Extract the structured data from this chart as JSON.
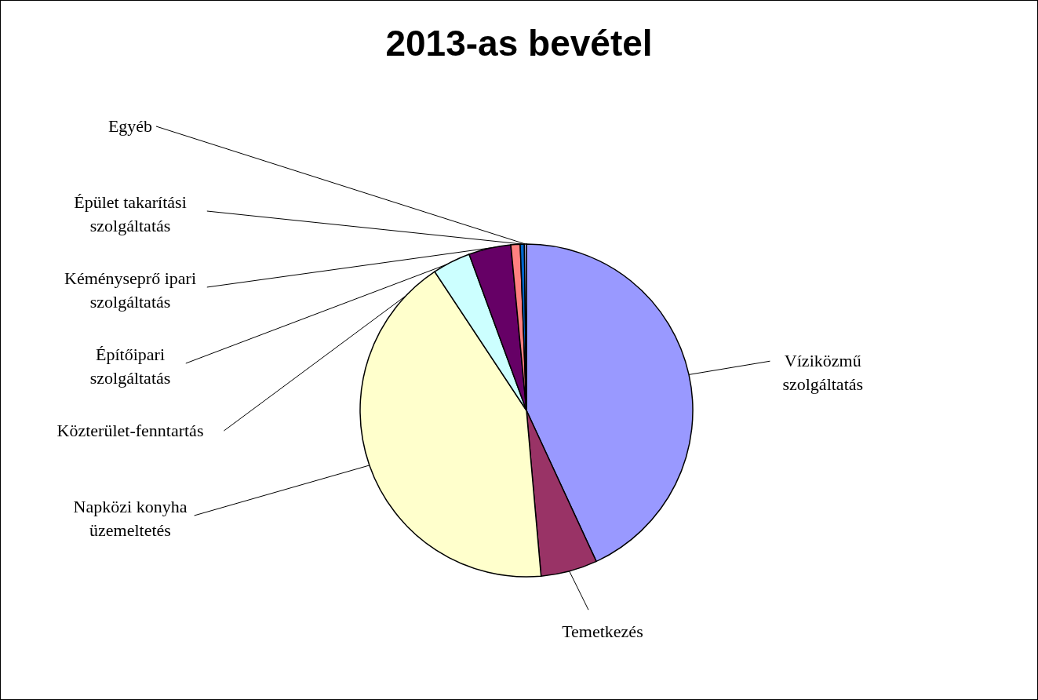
{
  "chart_data": {
    "type": "pie",
    "title": "2013-as bevétel",
    "categories": [
      "Víziközmű szolgáltatás",
      "Temetkezés",
      "Napközi konyha üzemeltetés",
      "Közterület-fenntartás",
      "Építőipari szolgáltatás",
      "Kéményseprő ipari szolgáltatás",
      "Épület takarítási szolgáltatás",
      "Egyéb"
    ],
    "values": [
      43.1,
      5.5,
      42.1,
      3.7,
      4.1,
      0.9,
      0.4,
      0.2
    ],
    "colors": [
      "#9999ff",
      "#993366",
      "#ffffcc",
      "#ccffff",
      "#660066",
      "#ff8080",
      "#0066cc",
      "#ccccff"
    ]
  }
}
